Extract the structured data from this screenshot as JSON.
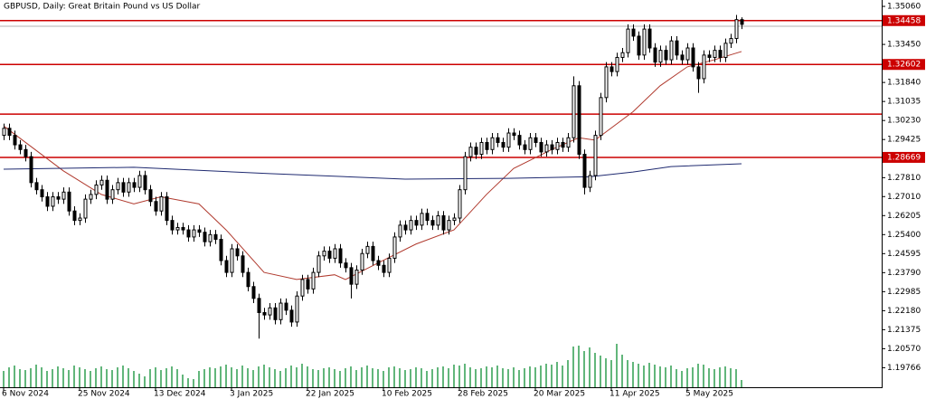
{
  "chart_data": {
    "type": "candlestick",
    "title": "GBPUSD, Daily:  Great Britain Pound vs US Dollar",
    "categories": [
      "6 Nov 2024",
      null,
      null,
      null,
      null,
      null,
      null,
      null,
      null,
      null,
      null,
      null,
      null,
      null,
      "25 Nov 2024",
      null,
      null,
      null,
      null,
      null,
      null,
      null,
      null,
      null,
      null,
      null,
      null,
      null,
      "13 Dec 2024",
      null,
      null,
      null,
      null,
      null,
      null,
      null,
      null,
      null,
      null,
      null,
      null,
      null,
      "3 Jan 2025",
      null,
      null,
      null,
      null,
      null,
      null,
      null,
      null,
      null,
      null,
      null,
      null,
      null,
      "22 Jan 2025",
      null,
      null,
      null,
      null,
      null,
      null,
      null,
      null,
      null,
      null,
      null,
      null,
      null,
      "10 Feb 2025",
      null,
      null,
      null,
      null,
      null,
      null,
      null,
      null,
      null,
      null,
      null,
      null,
      null,
      "28 Feb 2025",
      null,
      null,
      null,
      null,
      null,
      null,
      null,
      null,
      null,
      null,
      null,
      null,
      null,
      "20 Mar 2025",
      null,
      null,
      null,
      null,
      null,
      null,
      null,
      null,
      null,
      null,
      null,
      null,
      null,
      "11 Apr 2025",
      null,
      null,
      null,
      null,
      null,
      null,
      null,
      null,
      null,
      null,
      null,
      null,
      null,
      "5 May 2025",
      null,
      null,
      null,
      null,
      null,
      null,
      null,
      null,
      null,
      null
    ],
    "candles": [
      [
        1.296,
        1.301,
        1.294,
        1.299
      ],
      [
        1.299,
        1.301,
        1.294,
        1.296
      ],
      [
        1.296,
        1.298,
        1.29,
        1.292
      ],
      [
        1.292,
        1.294,
        1.288,
        1.29
      ],
      [
        1.29,
        1.292,
        1.285,
        1.287
      ],
      [
        1.287,
        1.289,
        1.274,
        1.276
      ],
      [
        1.276,
        1.278,
        1.271,
        1.273
      ],
      [
        1.273,
        1.275,
        1.268,
        1.27
      ],
      [
        1.27,
        1.272,
        1.264,
        1.266
      ],
      [
        1.266,
        1.272,
        1.264,
        1.27
      ],
      [
        1.27,
        1.272,
        1.267,
        1.269
      ],
      [
        1.269,
        1.274,
        1.267,
        1.272
      ],
      [
        1.272,
        1.274,
        1.262,
        1.264
      ],
      [
        1.264,
        1.266,
        1.258,
        1.26
      ],
      [
        1.26,
        1.263,
        1.258,
        1.261
      ],
      [
        1.261,
        1.271,
        1.259,
        1.269
      ],
      [
        1.269,
        1.273,
        1.267,
        1.271
      ],
      [
        1.271,
        1.277,
        1.269,
        1.275
      ],
      [
        1.275,
        1.279,
        1.273,
        1.277
      ],
      [
        1.277,
        1.279,
        1.267,
        1.269
      ],
      [
        1.269,
        1.275,
        1.267,
        1.273
      ],
      [
        1.273,
        1.278,
        1.271,
        1.276
      ],
      [
        1.276,
        1.278,
        1.27,
        1.272
      ],
      [
        1.272,
        1.278,
        1.27,
        1.276
      ],
      [
        1.276,
        1.278,
        1.272,
        1.274
      ],
      [
        1.274,
        1.281,
        1.272,
        1.279
      ],
      [
        1.279,
        1.281,
        1.271,
        1.273
      ],
      [
        1.273,
        1.275,
        1.266,
        1.268
      ],
      [
        1.268,
        1.27,
        1.262,
        1.264
      ],
      [
        1.264,
        1.272,
        1.262,
        1.27
      ],
      [
        1.27,
        1.272,
        1.258,
        1.26
      ],
      [
        1.26,
        1.262,
        1.254,
        1.256
      ],
      [
        1.256,
        1.259,
        1.254,
        1.257
      ],
      [
        1.257,
        1.259,
        1.254,
        1.256
      ],
      [
        1.256,
        1.258,
        1.251,
        1.253
      ],
      [
        1.253,
        1.258,
        1.251,
        1.256
      ],
      [
        1.256,
        1.258,
        1.253,
        1.255
      ],
      [
        1.255,
        1.257,
        1.249,
        1.251
      ],
      [
        1.251,
        1.256,
        1.249,
        1.254
      ],
      [
        1.254,
        1.256,
        1.25,
        1.252
      ],
      [
        1.252,
        1.254,
        1.241,
        1.243
      ],
      [
        1.243,
        1.245,
        1.236,
        1.238
      ],
      [
        1.238,
        1.25,
        1.236,
        1.248
      ],
      [
        1.248,
        1.25,
        1.243,
        1.245
      ],
      [
        1.245,
        1.247,
        1.236,
        1.238
      ],
      [
        1.238,
        1.24,
        1.23,
        1.232
      ],
      [
        1.232,
        1.234,
        1.225,
        1.227
      ],
      [
        1.227,
        1.229,
        1.21,
        1.221
      ],
      [
        1.221,
        1.223,
        1.218,
        1.22
      ],
      [
        1.22,
        1.225,
        1.218,
        1.223
      ],
      [
        1.223,
        1.225,
        1.216,
        1.218
      ],
      [
        1.218,
        1.227,
        1.216,
        1.225
      ],
      [
        1.225,
        1.227,
        1.22,
        1.222
      ],
      [
        1.222,
        1.224,
        1.215,
        1.217
      ],
      [
        1.217,
        1.23,
        1.215,
        1.228
      ],
      [
        1.228,
        1.237,
        1.226,
        1.235
      ],
      [
        1.235,
        1.237,
        1.229,
        1.231
      ],
      [
        1.231,
        1.24,
        1.229,
        1.238
      ],
      [
        1.238,
        1.247,
        1.236,
        1.245
      ],
      [
        1.245,
        1.249,
        1.243,
        1.247
      ],
      [
        1.247,
        1.249,
        1.242,
        1.244
      ],
      [
        1.244,
        1.25,
        1.242,
        1.248
      ],
      [
        1.248,
        1.25,
        1.24,
        1.242
      ],
      [
        1.242,
        1.244,
        1.238,
        1.24
      ],
      [
        1.24,
        1.242,
        1.227,
        1.233
      ],
      [
        1.233,
        1.241,
        1.231,
        1.239
      ],
      [
        1.239,
        1.248,
        1.237,
        1.246
      ],
      [
        1.246,
        1.251,
        1.244,
        1.249
      ],
      [
        1.249,
        1.251,
        1.241,
        1.243
      ],
      [
        1.243,
        1.245,
        1.239,
        1.241
      ],
      [
        1.241,
        1.243,
        1.236,
        1.238
      ],
      [
        1.238,
        1.246,
        1.236,
        1.244
      ],
      [
        1.244,
        1.255,
        1.242,
        1.253
      ],
      [
        1.253,
        1.26,
        1.251,
        1.258
      ],
      [
        1.258,
        1.26,
        1.254,
        1.256
      ],
      [
        1.256,
        1.262,
        1.254,
        1.26
      ],
      [
        1.26,
        1.262,
        1.256,
        1.258
      ],
      [
        1.258,
        1.265,
        1.256,
        1.263
      ],
      [
        1.263,
        1.265,
        1.258,
        1.26
      ],
      [
        1.26,
        1.262,
        1.256,
        1.258
      ],
      [
        1.258,
        1.264,
        1.256,
        1.262
      ],
      [
        1.262,
        1.264,
        1.254,
        1.256
      ],
      [
        1.256,
        1.262,
        1.254,
        1.26
      ],
      [
        1.26,
        1.263,
        1.258,
        1.261
      ],
      [
        1.261,
        1.275,
        1.259,
        1.273
      ],
      [
        1.273,
        1.289,
        1.271,
        1.287
      ],
      [
        1.287,
        1.293,
        1.285,
        1.291
      ],
      [
        1.291,
        1.293,
        1.286,
        1.288
      ],
      [
        1.288,
        1.295,
        1.286,
        1.293
      ],
      [
        1.293,
        1.295,
        1.288,
        1.29
      ],
      [
        1.29,
        1.297,
        1.288,
        1.295
      ],
      [
        1.295,
        1.297,
        1.291,
        1.293
      ],
      [
        1.293,
        1.295,
        1.289,
        1.291
      ],
      [
        1.291,
        1.299,
        1.289,
        1.297
      ],
      [
        1.297,
        1.299,
        1.294,
        1.296
      ],
      [
        1.296,
        1.298,
        1.29,
        1.292
      ],
      [
        1.292,
        1.294,
        1.288,
        1.29
      ],
      [
        1.29,
        1.297,
        1.288,
        1.295
      ],
      [
        1.295,
        1.297,
        1.291,
        1.293
      ],
      [
        1.293,
        1.295,
        1.287,
        1.289
      ],
      [
        1.289,
        1.294,
        1.287,
        1.292
      ],
      [
        1.292,
        1.294,
        1.288,
        1.29
      ],
      [
        1.29,
        1.295,
        1.288,
        1.293
      ],
      [
        1.293,
        1.295,
        1.289,
        1.291
      ],
      [
        1.291,
        1.297,
        1.289,
        1.295
      ],
      [
        1.295,
        1.321,
        1.293,
        1.317
      ],
      [
        1.317,
        1.319,
        1.286,
        1.288
      ],
      [
        1.288,
        1.29,
        1.271,
        1.274
      ],
      [
        1.274,
        1.281,
        1.272,
        1.279
      ],
      [
        1.279,
        1.298,
        1.277,
        1.296
      ],
      [
        1.296,
        1.314,
        1.294,
        1.312
      ],
      [
        1.312,
        1.327,
        1.31,
        1.325
      ],
      [
        1.325,
        1.327,
        1.321,
        1.323
      ],
      [
        1.323,
        1.331,
        1.321,
        1.329
      ],
      [
        1.329,
        1.333,
        1.327,
        1.331
      ],
      [
        1.331,
        1.343,
        1.329,
        1.341
      ],
      [
        1.341,
        1.343,
        1.336,
        1.338
      ],
      [
        1.338,
        1.34,
        1.328,
        1.33
      ],
      [
        1.33,
        1.343,
        1.328,
        1.341
      ],
      [
        1.341,
        1.343,
        1.331,
        1.333
      ],
      [
        1.333,
        1.335,
        1.325,
        1.327
      ],
      [
        1.327,
        1.334,
        1.325,
        1.332
      ],
      [
        1.332,
        1.334,
        1.326,
        1.328
      ],
      [
        1.328,
        1.338,
        1.326,
        1.336
      ],
      [
        1.336,
        1.338,
        1.328,
        1.33
      ],
      [
        1.33,
        1.332,
        1.326,
        1.328
      ],
      [
        1.328,
        1.335,
        1.326,
        1.333
      ],
      [
        1.333,
        1.335,
        1.323,
        1.325
      ],
      [
        1.325,
        1.327,
        1.314,
        1.32
      ],
      [
        1.32,
        1.332,
        1.318,
        1.33
      ],
      [
        1.33,
        1.332,
        1.327,
        1.329
      ],
      [
        1.329,
        1.334,
        1.327,
        1.332
      ],
      [
        1.332,
        1.334,
        1.327,
        1.329
      ],
      [
        1.329,
        1.337,
        1.327,
        1.335
      ],
      [
        1.335,
        1.339,
        1.333,
        1.337
      ],
      [
        1.337,
        1.347,
        1.335,
        1.345
      ],
      [
        1.345,
        1.346,
        1.341,
        1.343
      ]
    ],
    "up_color": "#ffffff",
    "down_color": "#000000",
    "volume": {
      "color": "#2e9e4f",
      "ylim": [
        0,
        100
      ],
      "values": [
        18,
        22,
        24,
        20,
        19,
        21,
        25,
        22,
        18,
        20,
        23,
        21,
        19,
        24,
        22,
        20,
        18,
        21,
        23,
        20,
        19,
        22,
        24,
        21,
        18,
        15,
        12,
        20,
        22,
        19,
        21,
        23,
        20,
        14,
        10,
        9,
        18,
        20,
        22,
        21,
        23,
        25,
        22,
        20,
        24,
        21,
        19,
        23,
        25,
        22,
        20,
        18,
        21,
        24,
        22,
        26,
        23,
        20,
        19,
        21,
        22,
        20,
        18,
        21,
        23,
        19,
        22,
        24,
        21,
        20,
        18,
        22,
        23,
        21,
        19,
        20,
        22,
        21,
        18,
        20,
        22,
        23,
        21,
        25,
        24,
        26,
        22,
        20,
        21,
        23,
        22,
        24,
        21,
        20,
        22,
        19,
        21,
        23,
        22,
        24,
        26,
        25,
        28,
        24,
        30,
        45,
        46,
        40,
        44,
        38,
        35,
        32,
        30,
        48,
        36,
        30,
        28,
        26,
        24,
        27,
        25,
        23,
        22,
        24,
        20,
        18,
        21,
        22,
        26,
        25,
        21,
        20,
        22,
        23,
        21,
        20,
        8
      ]
    },
    "lines": [
      {
        "color": "#b03a2e",
        "x": [
          0,
          11,
          18,
          24,
          29,
          36,
          41,
          48,
          54,
          61,
          63,
          69,
          76,
          83,
          89,
          94,
          101,
          106,
          109,
          116,
          121,
          126,
          131,
          136
        ],
        "values": [
          1.3,
          1.281,
          1.271,
          1.267,
          1.27,
          1.267,
          1.256,
          1.238,
          1.235,
          1.237,
          1.235,
          1.242,
          1.25,
          1.256,
          1.271,
          1.282,
          1.29,
          1.295,
          1.294,
          1.306,
          1.317,
          1.325,
          1.328,
          1.3315
        ]
      },
      {
        "color": "#1f2a70",
        "x": [
          0,
          24,
          49,
          74,
          93,
          108,
          116,
          123,
          136
        ],
        "values": [
          1.2817,
          1.2825,
          1.2798,
          1.2775,
          1.2778,
          1.2785,
          1.2805,
          1.2828,
          1.284
        ]
      }
    ],
    "levels": [
      {
        "value": 1.34458,
        "label": "1.34458"
      },
      {
        "value": 1.32602,
        "label": "1.32602"
      },
      {
        "value": 1.305
      },
      {
        "value": 1.28669,
        "label": "1.28669"
      }
    ],
    "level_color": "#cc0000",
    "bid": 1.3422,
    "bid_color": "#b0b0b0",
    "ylim": [
      1.1894,
      1.3533
    ],
    "yticks": [
      {
        "value": 1.3506,
        "label": "1.35060"
      },
      {
        "value": 1.3345,
        "label": "1.33450"
      },
      {
        "value": 1.3184,
        "label": "1.31840"
      },
      {
        "value": 1.31035,
        "label": "1.31035"
      },
      {
        "value": 1.3023,
        "label": "1.30230"
      },
      {
        "value": 1.29425,
        "label": "1.29425"
      },
      {
        "value": 1.2781,
        "label": "1.27810"
      },
      {
        "value": 1.2701,
        "label": "1.27010"
      },
      {
        "value": 1.26205,
        "label": "1.26205"
      },
      {
        "value": 1.254,
        "label": "1.25400"
      },
      {
        "value": 1.24595,
        "label": "1.24595"
      },
      {
        "value": 1.2379,
        "label": "1.23790"
      },
      {
        "value": 1.22985,
        "label": "1.22985"
      },
      {
        "value": 1.2218,
        "label": "1.22180"
      },
      {
        "value": 1.21375,
        "label": "1.21375"
      },
      {
        "value": 1.2057,
        "label": "1.20570"
      },
      {
        "value": 1.19766,
        "label": "1.19766"
      }
    ]
  }
}
